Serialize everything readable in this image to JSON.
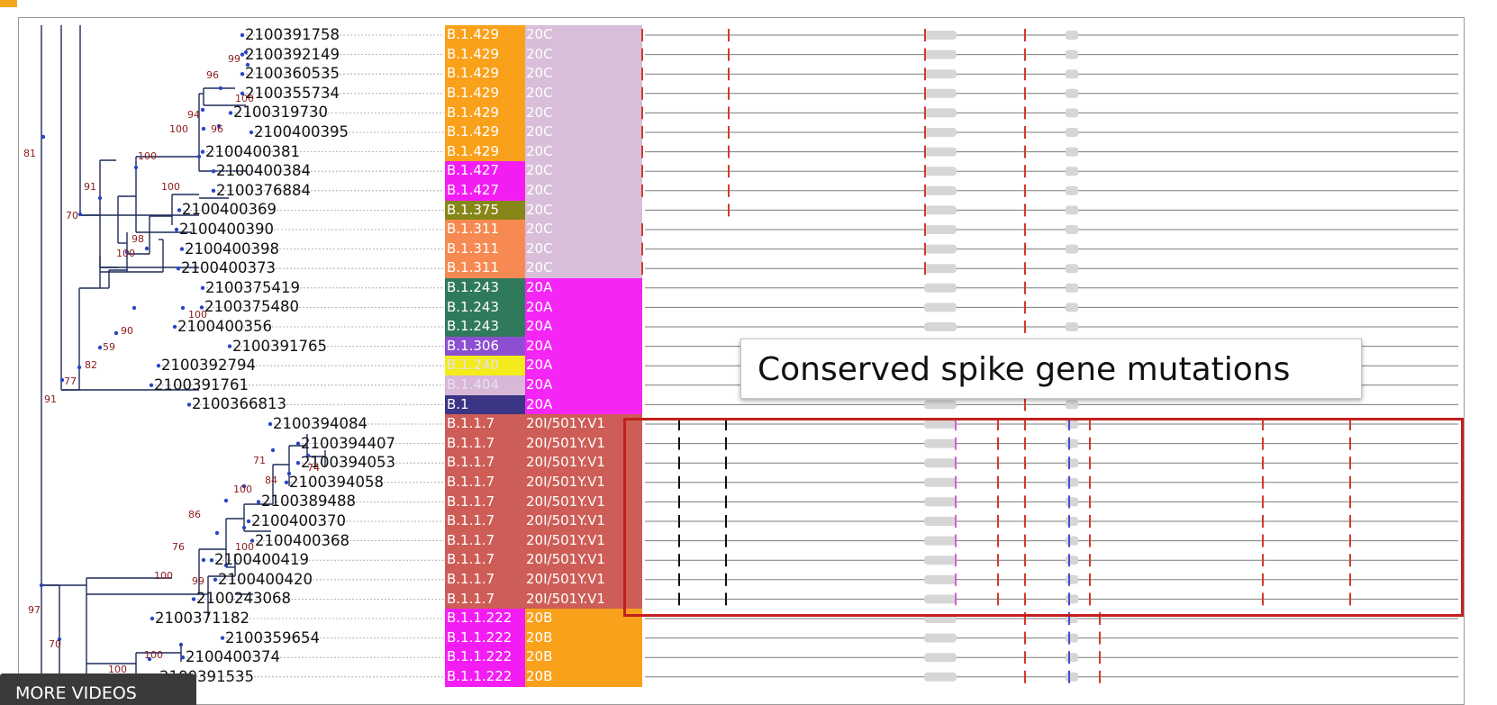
{
  "leaves": [
    {
      "id": "2100391758",
      "lineage": "B.1.429",
      "clade": "20C"
    },
    {
      "id": "2100392149",
      "lineage": "B.1.429",
      "clade": "20C"
    },
    {
      "id": "2100360535",
      "lineage": "B.1.429",
      "clade": "20C"
    },
    {
      "id": "2100355734",
      "lineage": "B.1.429",
      "clade": "20C"
    },
    {
      "id": "2100319730",
      "lineage": "B.1.429",
      "clade": "20C"
    },
    {
      "id": "2100400395",
      "lineage": "B.1.429",
      "clade": "20C"
    },
    {
      "id": "2100400381",
      "lineage": "B.1.429",
      "clade": "20C"
    },
    {
      "id": "2100400384",
      "lineage": "B.1.427",
      "clade": "20C"
    },
    {
      "id": "2100376884",
      "lineage": "B.1.427",
      "clade": "20C"
    },
    {
      "id": "2100400369",
      "lineage": "B.1.375",
      "clade": "20C"
    },
    {
      "id": "2100400390",
      "lineage": "B.1.311",
      "clade": "20C"
    },
    {
      "id": "2100400398",
      "lineage": "B.1.311",
      "clade": "20C"
    },
    {
      "id": "2100400373",
      "lineage": "B.1.311",
      "clade": "20C"
    },
    {
      "id": "2100375419",
      "lineage": "B.1.243",
      "clade": "20A"
    },
    {
      "id": "2100375480",
      "lineage": "B.1.243",
      "clade": "20A"
    },
    {
      "id": "2100400356",
      "lineage": "B.1.243",
      "clade": "20A"
    },
    {
      "id": "2100391765",
      "lineage": "B.1.306",
      "clade": "20A"
    },
    {
      "id": "2100392794",
      "lineage": "B.1.240",
      "clade": "20A"
    },
    {
      "id": "2100391761",
      "lineage": "B.1.404",
      "clade": "20A"
    },
    {
      "id": "2100366813",
      "lineage": "B.1",
      "clade": "20A"
    },
    {
      "id": "2100394084",
      "lineage": "B.1.1.7",
      "clade": "20I/501Y.V1"
    },
    {
      "id": "2100394407",
      "lineage": "B.1.1.7",
      "clade": "20I/501Y.V1"
    },
    {
      "id": "2100394053",
      "lineage": "B.1.1.7",
      "clade": "20I/501Y.V1"
    },
    {
      "id": "2100394058",
      "lineage": "B.1.1.7",
      "clade": "20I/501Y.V1"
    },
    {
      "id": "2100389488",
      "lineage": "B.1.1.7",
      "clade": "20I/501Y.V1"
    },
    {
      "id": "2100400370",
      "lineage": "B.1.1.7",
      "clade": "20I/501Y.V1"
    },
    {
      "id": "2100400368",
      "lineage": "B.1.1.7",
      "clade": "20I/501Y.V1"
    },
    {
      "id": "2100400419",
      "lineage": "B.1.1.7",
      "clade": "20I/501Y.V1"
    },
    {
      "id": "2100400420",
      "lineage": "B.1.1.7",
      "clade": "20I/501Y.V1"
    },
    {
      "id": "2100243068",
      "lineage": "B.1.1.7",
      "clade": "20I/501Y.V1"
    },
    {
      "id": "2100371182",
      "lineage": "B.1.1.222",
      "clade": "20B"
    },
    {
      "id": "2100359654",
      "lineage": "B.1.1.222",
      "clade": "20B"
    },
    {
      "id": "2100400374",
      "lineage": "B.1.1.222",
      "clade": "20B"
    },
    {
      "id": "2100391535",
      "lineage": "B.1.1.222",
      "clade": "20B"
    }
  ],
  "bootstrap": [
    "81",
    "99",
    "96",
    "100",
    "94",
    "96",
    "100",
    "100",
    "100",
    "91",
    "70",
    "98",
    "100",
    "100",
    "90",
    "59",
    "82",
    "77",
    "91",
    "71",
    "74",
    "84",
    "100",
    "86",
    "100",
    "76",
    "99",
    "100",
    "97",
    "70",
    "100",
    "100"
  ],
  "callout": {
    "text": "Conserved spike gene mutations"
  },
  "overlay": {
    "more_videos_label": "MORE VIDEOS"
  },
  "colors": {
    "B.1.429": "#f9a11b",
    "B.1.427": "#f31df4",
    "B.1.375": "#868619",
    "B.1.311": "#f68a52",
    "B.1.243": "#2f7a5a",
    "B.1.306": "#8d4fd1",
    "B.1.240": "#f3ec1a",
    "B.1.404": "#d8b8d6",
    "B.1": "#3a3584",
    "B.1.1.7": "#cd5d56",
    "B.1.1.222": "#f31df4",
    "20C": "#d8bed8",
    "20A": "#f425f5",
    "20I/501Y.V1": "#cd5d56",
    "20B": "#f9a11b",
    "tree_line": "#1c2a5a",
    "node_dot": "#2b46c4",
    "mut_red": "#d23a2c",
    "mut_black": "#111111",
    "mut_blue": "#4a4ad0",
    "mut_pink": "#d35fd0",
    "gene_block": "#d6d6d6",
    "box_red": "#c2201e"
  }
}
